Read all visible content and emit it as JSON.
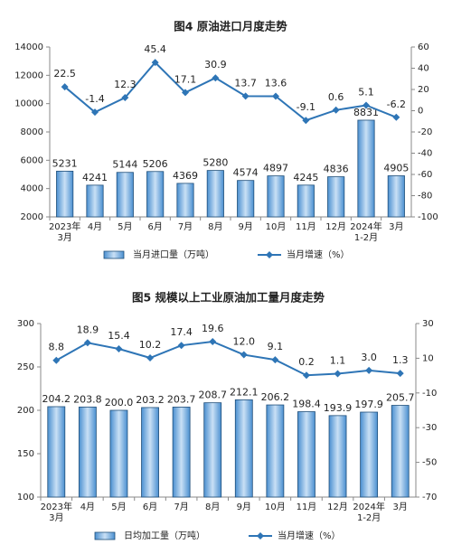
{
  "chart_data": [
    {
      "type": "combo",
      "title": "图4  原油进口月度走势",
      "categories": [
        "2023年\n3月",
        "4月",
        "5月",
        "6月",
        "7月",
        "8月",
        "9月",
        "10月",
        "11月",
        "12月",
        "2024年\n1-2月",
        "3月"
      ],
      "series": [
        {
          "name": "当月进口量（万吨）",
          "type": "bar",
          "color": "#5b9bd5",
          "values": [
            5231,
            4241,
            5144,
            5206,
            4369,
            5280,
            4574,
            4897,
            4245,
            4836,
            8831,
            4905
          ]
        },
        {
          "name": "当月增速（%）",
          "type": "line",
          "axis": "y2",
          "color": "#2e75b6",
          "values": [
            22.5,
            -1.4,
            12.3,
            45.4,
            17.1,
            30.9,
            13.7,
            13.6,
            -9.1,
            0.6,
            5.1,
            -6.2
          ]
        }
      ],
      "ylim": [
        2000,
        14000
      ],
      "yticks": [
        2000,
        4000,
        6000,
        8000,
        10000,
        12000,
        14000
      ],
      "y2lim": [
        -100,
        60
      ],
      "y2ticks": [
        -100,
        -80,
        -60,
        -40,
        -20,
        0,
        20,
        40,
        60
      ]
    },
    {
      "type": "combo",
      "title": "图5  规模以上工业原油加工量月度走势",
      "categories": [
        "2023年\n3月",
        "4月",
        "5月",
        "6月",
        "7月",
        "8月",
        "9月",
        "10月",
        "11月",
        "12月",
        "2024年\n1-2月",
        "3月"
      ],
      "series": [
        {
          "name": "日均加工量（万吨）",
          "type": "bar",
          "color": "#5b9bd5",
          "values": [
            204.2,
            203.8,
            200.0,
            203.2,
            203.7,
            208.7,
            212.1,
            206.2,
            198.4,
            193.9,
            197.9,
            205.7
          ],
          "value_labels": [
            "204.2",
            "203.8",
            "200.0",
            "203.2",
            "203.7",
            "208.7",
            "212.1",
            "206.2",
            "198.4",
            "193.9",
            "197.9",
            "205.7"
          ]
        },
        {
          "name": "当月增速（%）",
          "type": "line",
          "axis": "y2",
          "color": "#2e75b6",
          "values": [
            8.8,
            18.9,
            15.4,
            10.2,
            17.4,
            19.6,
            12.0,
            9.1,
            0.2,
            1.1,
            3.0,
            1.3
          ],
          "value_labels": [
            "8.8",
            "18.9",
            "15.4",
            "10.2",
            "17.4",
            "19.6",
            "12.0",
            "9.1",
            "0.2",
            "1.1",
            "3.0",
            "1.3"
          ]
        }
      ],
      "ylim": [
        100,
        300
      ],
      "yticks": [
        100,
        150,
        200,
        250,
        300
      ],
      "y2lim": [
        -70,
        30
      ],
      "y2ticks": [
        -70,
        -50,
        -30,
        -10,
        10,
        30
      ]
    }
  ]
}
